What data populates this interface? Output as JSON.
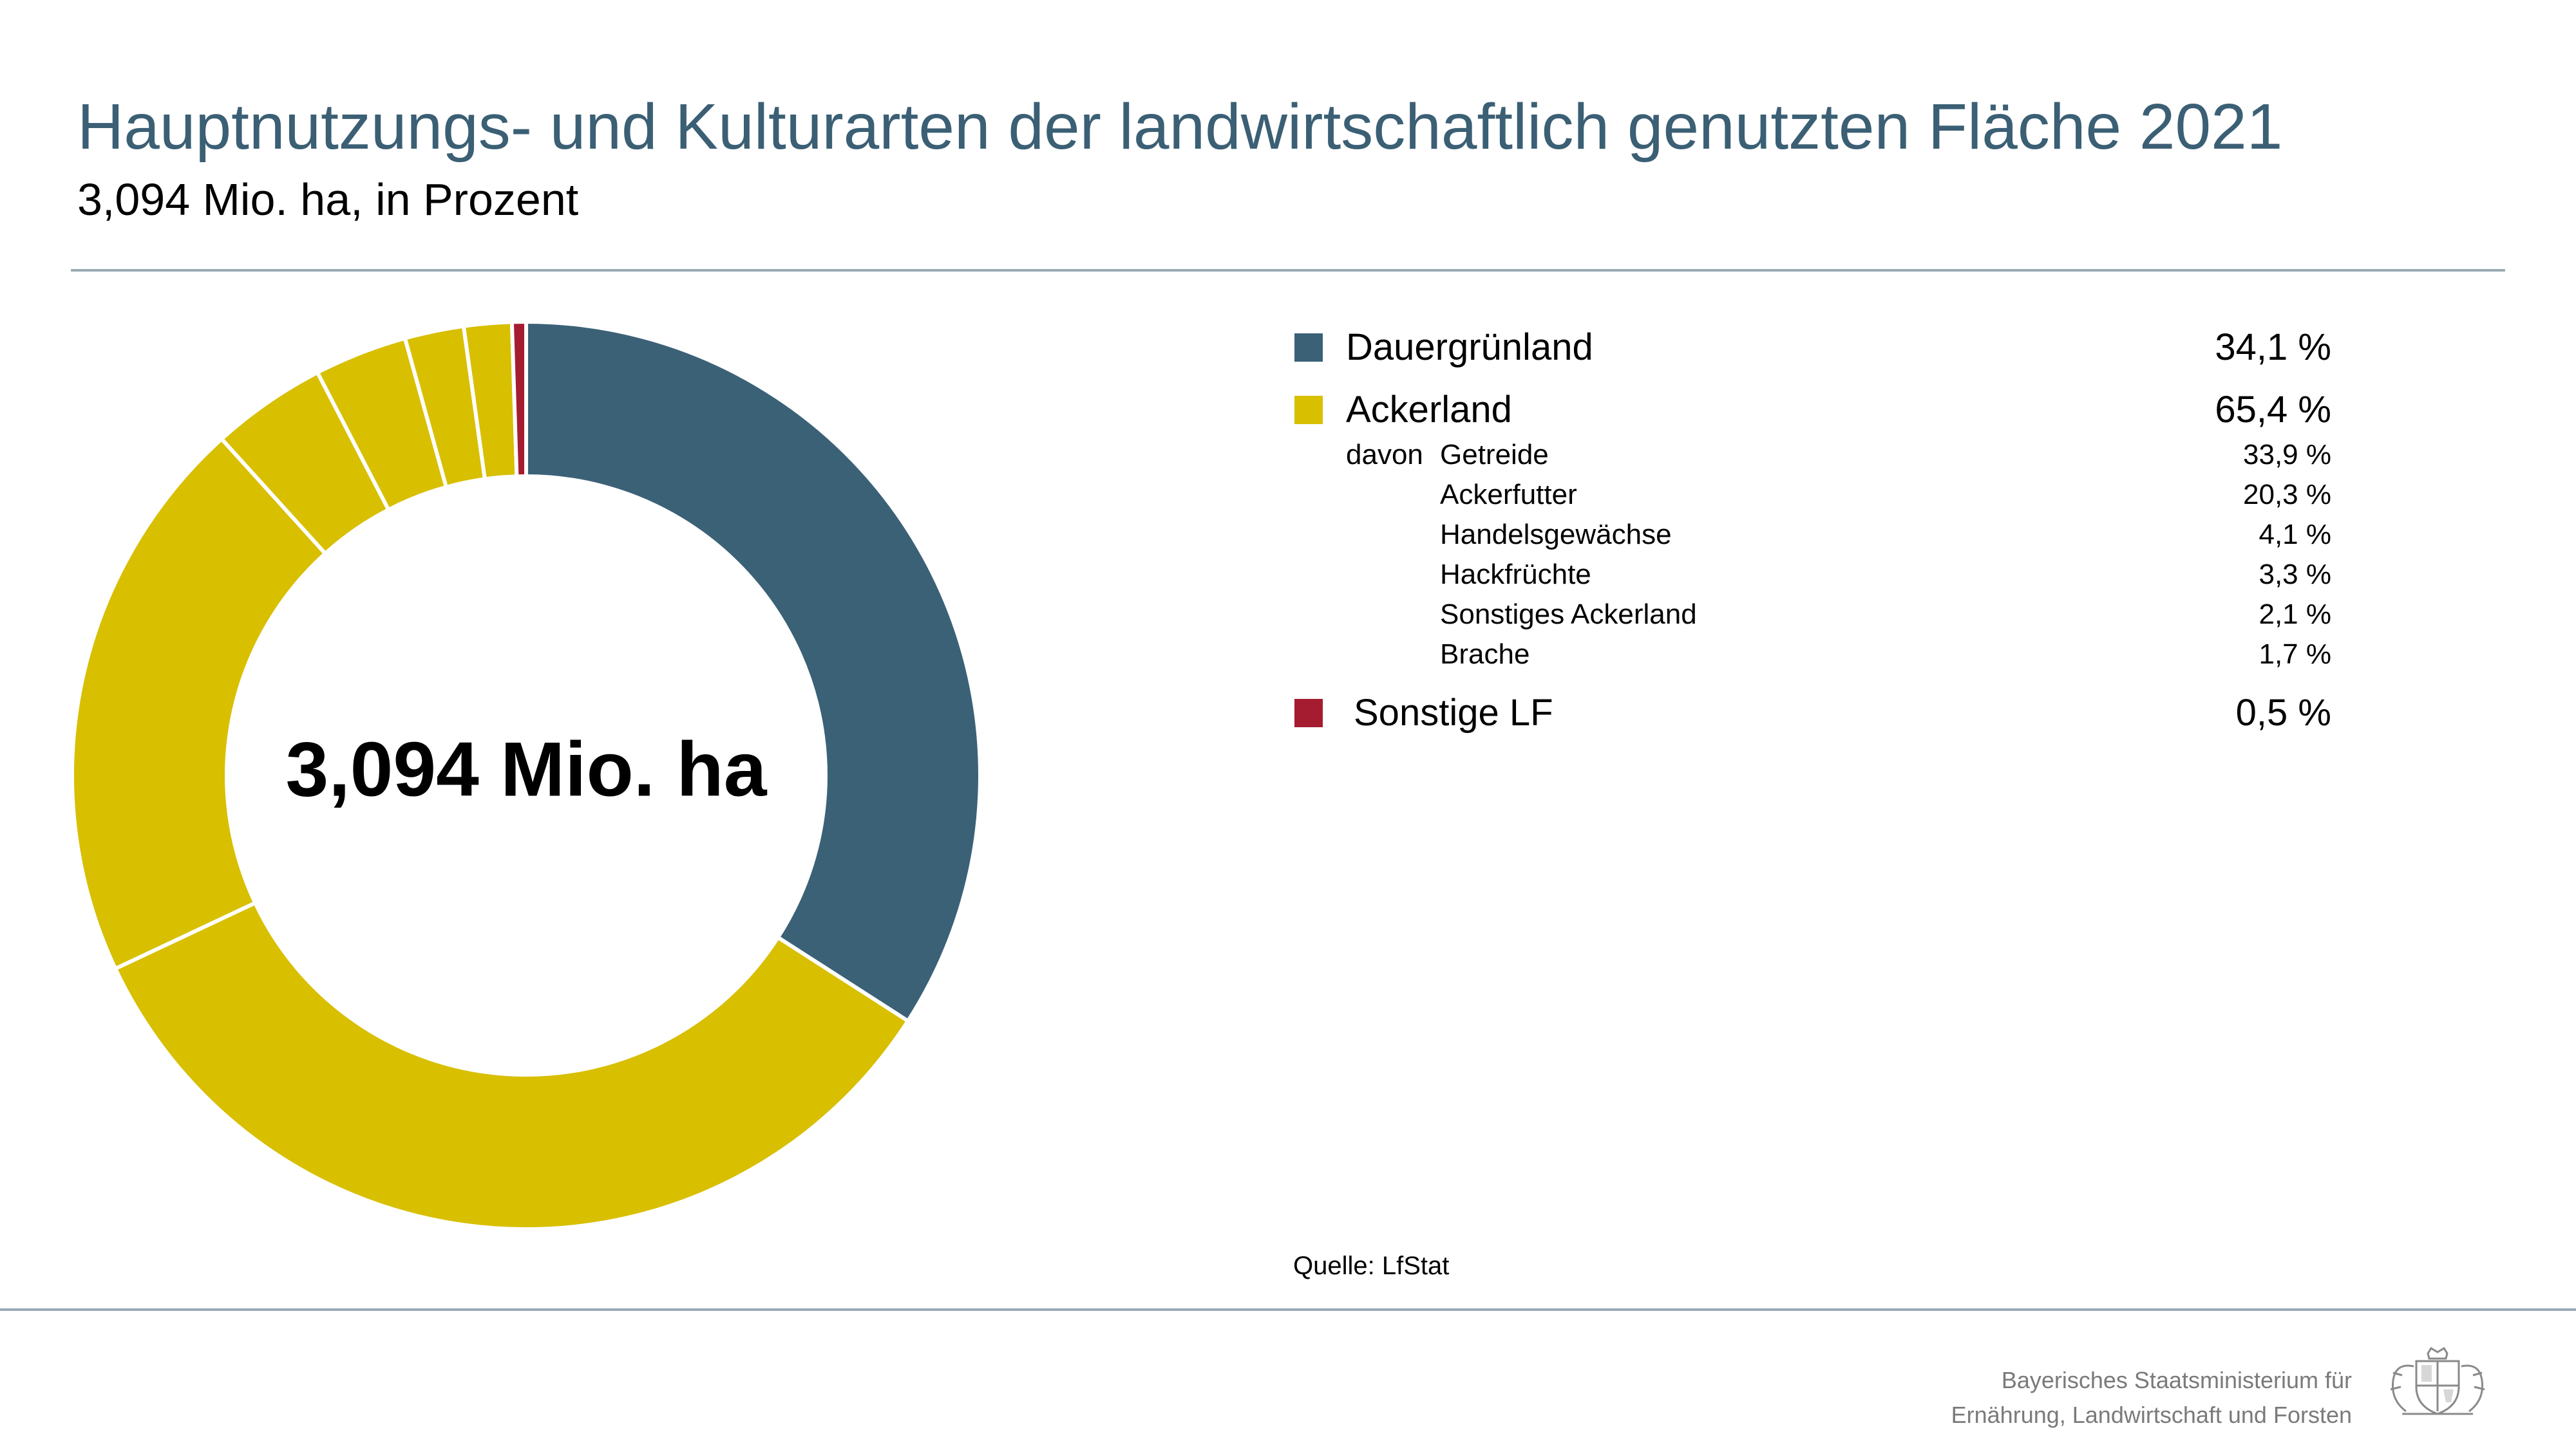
{
  "header": {
    "title": "Hauptnutzungs- und Kulturarten der landwirtschaftlich genutzten Fläche 2021",
    "subtitle": "3,094 Mio. ha, in Prozent"
  },
  "chart_data": {
    "type": "pie",
    "center_label": "3,094 Mio. ha",
    "slices": [
      {
        "label": "Dauergrünland",
        "value": 34.1,
        "color": "#3b6177"
      },
      {
        "label": "Getreide",
        "value": 33.9,
        "color": "#d8bf00"
      },
      {
        "label": "Ackerfutter",
        "value": 20.3,
        "color": "#d8bf00"
      },
      {
        "label": "Handelsgewächse",
        "value": 4.1,
        "color": "#d8bf00"
      },
      {
        "label": "Hackfrüchte",
        "value": 3.3,
        "color": "#d8bf00"
      },
      {
        "label": "Sonstiges Ackerland",
        "value": 2.1,
        "color": "#d8bf00"
      },
      {
        "label": "Brache",
        "value": 1.7,
        "color": "#d8bf00"
      },
      {
        "label": "Sonstige LF",
        "value": 0.5,
        "color": "#a51c30"
      }
    ],
    "legend": {
      "position": "right",
      "entries": [
        {
          "label": "Dauergrünland",
          "value_text": "34,1 %",
          "color": "#3b6177"
        },
        {
          "label": "Ackerland",
          "value_text": "65,4 %",
          "color": "#d8bf00"
        },
        {
          "label": "Sonstige LF",
          "value_text": "0,5 %",
          "color": "#a51c30"
        }
      ],
      "sub_prefix": "davon",
      "sub_entries": [
        {
          "label": "Getreide",
          "value_text": "33,9 %"
        },
        {
          "label": "Ackerfutter",
          "value_text": "20,3 %"
        },
        {
          "label": "Handelsgewächse",
          "value_text": "4,1 %"
        },
        {
          "label": "Hackfrüchte",
          "value_text": "3,3 %"
        },
        {
          "label": "Sonstiges Ackerland",
          "value_text": "2,1 %"
        },
        {
          "label": "Brache",
          "value_text": "1,7 %"
        }
      ]
    },
    "source": "Quelle: LfStat"
  },
  "footer": {
    "line1": "Bayerisches Staatsministerium für",
    "line2": "Ernährung, Landwirtschaft und Forsten",
    "logo_icon": "bavarian-coat-of-arms-icon"
  }
}
